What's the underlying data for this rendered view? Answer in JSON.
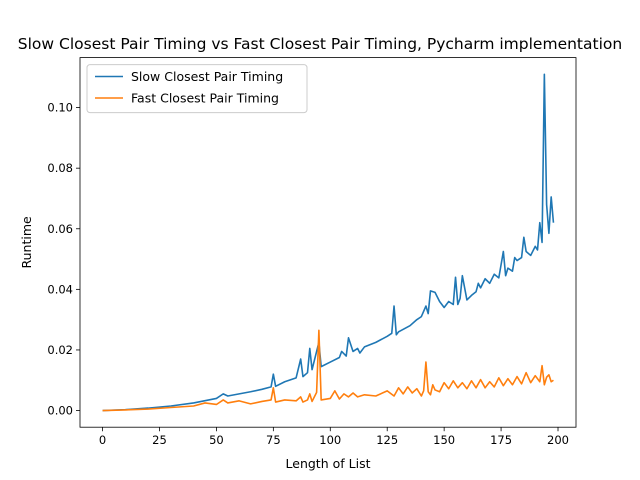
{
  "chart_data": {
    "type": "line",
    "title": "Slow Closest Pair Timing vs Fast Closest Pair  Timing, Pycharm implementation",
    "xlabel": "Length of List",
    "ylabel": "Runtime",
    "xlim": [
      -9.9,
      207.9
    ],
    "ylim": [
      -0.0055,
      0.1165
    ],
    "xticks": [
      0,
      25,
      50,
      75,
      100,
      125,
      150,
      175,
      200
    ],
    "yticks": [
      0.0,
      0.02,
      0.04,
      0.06,
      0.08,
      0.1
    ],
    "xtick_labels": [
      "0",
      "25",
      "50",
      "75",
      "100",
      "125",
      "150",
      "175",
      "200"
    ],
    "ytick_labels": [
      "0.00",
      "0.02",
      "0.04",
      "0.06",
      "0.08",
      "0.10"
    ],
    "legend_position": "upper left",
    "grid": false,
    "series": [
      {
        "name": "Slow Closest Pair Timing",
        "color": "#1f77b4",
        "x": [
          0,
          10,
          20,
          30,
          40,
          50,
          53,
          55,
          60,
          65,
          70,
          74,
          75,
          76,
          80,
          85,
          87,
          88,
          90,
          91,
          92,
          94,
          95,
          96,
          100,
          104,
          105,
          107,
          108,
          110,
          112,
          113,
          115,
          120,
          125,
          127,
          128,
          129,
          130,
          135,
          138,
          140,
          142,
          143,
          144,
          146,
          148,
          150,
          152,
          154,
          155,
          156,
          157,
          158,
          160,
          162,
          164,
          165,
          166,
          168,
          170,
          172,
          174,
          176,
          177,
          178,
          180,
          181,
          182,
          184,
          185,
          186,
          188,
          190,
          191,
          192,
          193,
          194,
          195,
          196,
          197,
          198
        ],
        "y": [
          0.0,
          0.0003,
          0.0008,
          0.0015,
          0.0025,
          0.004,
          0.0055,
          0.0048,
          0.0055,
          0.0062,
          0.007,
          0.0078,
          0.012,
          0.008,
          0.0095,
          0.0108,
          0.017,
          0.0112,
          0.0125,
          0.0205,
          0.0135,
          0.0195,
          0.0225,
          0.0145,
          0.016,
          0.0175,
          0.0195,
          0.018,
          0.024,
          0.0195,
          0.0205,
          0.019,
          0.021,
          0.0225,
          0.0245,
          0.0255,
          0.0345,
          0.025,
          0.026,
          0.028,
          0.03,
          0.031,
          0.0345,
          0.032,
          0.0395,
          0.039,
          0.036,
          0.034,
          0.036,
          0.035,
          0.044,
          0.035,
          0.037,
          0.0445,
          0.0365,
          0.038,
          0.0392,
          0.042,
          0.0405,
          0.0435,
          0.042,
          0.045,
          0.0438,
          0.0525,
          0.0445,
          0.047,
          0.046,
          0.0505,
          0.0495,
          0.0505,
          0.0572,
          0.0525,
          0.0512,
          0.0542,
          0.053,
          0.062,
          0.0555,
          0.111,
          0.068,
          0.0585,
          0.0705,
          0.062
        ]
      },
      {
        "name": "Fast Closest Pair  Timing",
        "color": "#ff7f0e",
        "x": [
          0,
          10,
          20,
          30,
          40,
          45,
          50,
          53,
          55,
          60,
          65,
          70,
          74,
          75,
          76,
          80,
          85,
          87,
          88,
          90,
          91,
          92,
          94,
          95,
          96,
          100,
          102,
          104,
          106,
          108,
          110,
          112,
          115,
          120,
          125,
          128,
          130,
          132,
          134,
          136,
          138,
          140,
          141,
          142,
          143,
          144,
          145,
          146,
          148,
          150,
          152,
          154,
          156,
          158,
          160,
          162,
          164,
          166,
          168,
          170,
          172,
          174,
          176,
          178,
          180,
          182,
          184,
          186,
          188,
          190,
          192,
          193,
          194,
          195,
          196,
          197,
          198
        ],
        "y": [
          0.0,
          0.0002,
          0.0005,
          0.001,
          0.0015,
          0.0025,
          0.002,
          0.0035,
          0.0025,
          0.0032,
          0.0022,
          0.003,
          0.0035,
          0.0075,
          0.0028,
          0.0035,
          0.0032,
          0.0045,
          0.0028,
          0.0035,
          0.0055,
          0.003,
          0.006,
          0.0265,
          0.0035,
          0.004,
          0.0065,
          0.0038,
          0.0055,
          0.0045,
          0.0058,
          0.0045,
          0.0052,
          0.0048,
          0.0065,
          0.0048,
          0.0075,
          0.0055,
          0.0078,
          0.0058,
          0.0072,
          0.0048,
          0.0065,
          0.016,
          0.0062,
          0.0052,
          0.0085,
          0.0068,
          0.0062,
          0.0092,
          0.0072,
          0.0098,
          0.0075,
          0.0092,
          0.0072,
          0.0098,
          0.0075,
          0.0102,
          0.0075,
          0.0095,
          0.0078,
          0.0108,
          0.0082,
          0.0105,
          0.0085,
          0.0112,
          0.0088,
          0.0125,
          0.0092,
          0.0115,
          0.0095,
          0.0148,
          0.0085,
          0.011,
          0.0118,
          0.0095,
          0.01
        ]
      }
    ]
  }
}
